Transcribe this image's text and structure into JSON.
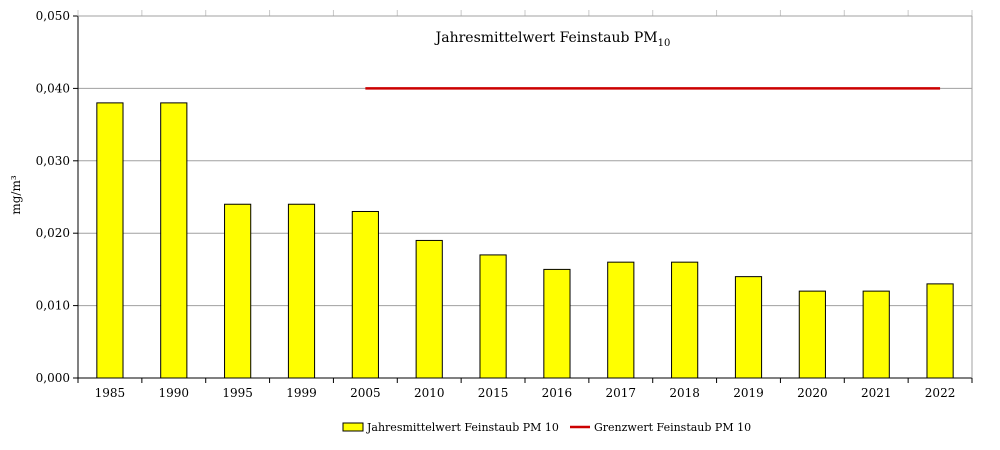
{
  "chart_data": {
    "type": "bar",
    "title": "Jahresmittelwert Feinstaub PM",
    "title_subscript": "10",
    "ylabel": "mg/m³",
    "xlabel": "",
    "ylim": [
      0,
      0.05
    ],
    "yticks": [
      "0,000",
      "0,010",
      "0,020",
      "0,030",
      "0,040",
      "0,050"
    ],
    "grid": true,
    "categories": [
      "1985",
      "1990",
      "1995",
      "1999",
      "2005",
      "2010",
      "2015",
      "2016",
      "2017",
      "2018",
      "2019",
      "2020",
      "2021",
      "2022"
    ],
    "series": [
      {
        "name": "Jahresmittelwert Feinstaub PM 10",
        "type": "bar",
        "color": "#ffff00",
        "values": [
          0.038,
          0.038,
          0.024,
          0.024,
          0.023,
          0.019,
          0.017,
          0.015,
          0.016,
          0.016,
          0.014,
          0.012,
          0.012,
          0.013
        ]
      },
      {
        "name": "Grenzwert Feinstaub PM 10",
        "type": "line",
        "color": "#cc0000",
        "x_start": "2005",
        "x_end": "2022",
        "value": 0.04
      }
    ],
    "legend_position": "bottom"
  }
}
